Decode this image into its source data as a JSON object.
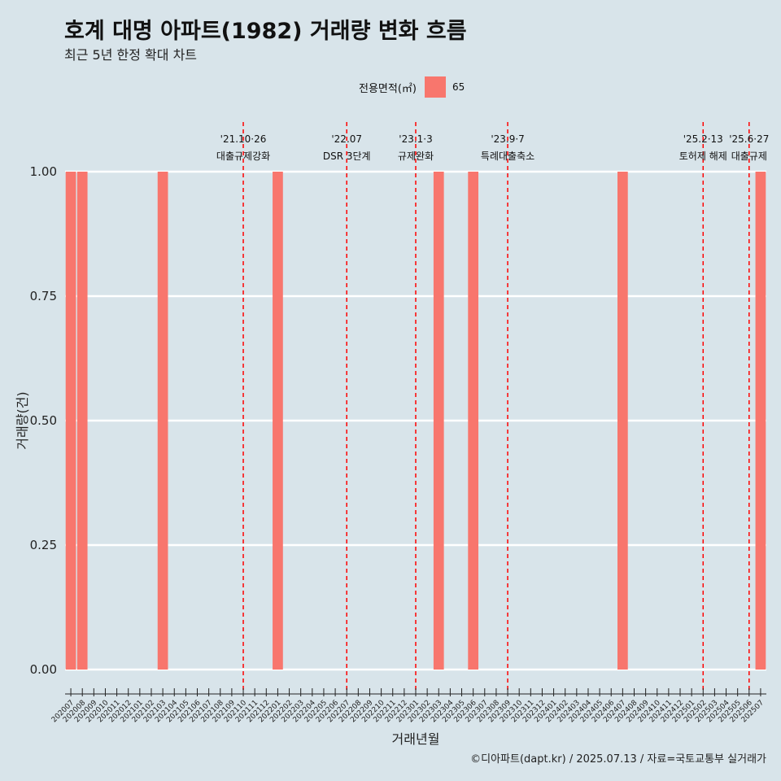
{
  "title": "호계 대명 아파트(1982) 거래량 변화 흐름",
  "subtitle": "최근 5년 한정 확대 차트",
  "caption": "©디아파트(dapt.kr) / 2025.07.13 / 자료=국토교통부 실거래가",
  "legend": {
    "title": "전용면적(㎡)",
    "color": "#f8766d",
    "items": [
      {
        "label": "65"
      }
    ]
  },
  "colors": {
    "background": "#d8e4ea",
    "bar": "#f8766d",
    "event_line": "#ff0000",
    "grid": "#ffffff"
  },
  "chart_data": {
    "type": "bar",
    "xlabel": "거래년월",
    "ylabel": "거래량(건)",
    "ylim": [
      0,
      1
    ],
    "yticks": [
      "0.00",
      "0.25",
      "0.50",
      "0.75",
      "1.00"
    ],
    "grid": true,
    "legend_position": "top",
    "categories": [
      "202007",
      "202008",
      "202009",
      "202010",
      "202011",
      "202012",
      "202101",
      "202102",
      "202103",
      "202104",
      "202105",
      "202106",
      "202107",
      "202108",
      "202109",
      "202110",
      "202111",
      "202112",
      "202201",
      "202202",
      "202203",
      "202204",
      "202205",
      "202206",
      "202207",
      "202208",
      "202209",
      "202210",
      "202211",
      "202212",
      "202301",
      "202302",
      "202303",
      "202304",
      "202305",
      "202306",
      "202307",
      "202308",
      "202309",
      "202310",
      "202311",
      "202312",
      "202401",
      "202402",
      "202403",
      "202404",
      "202405",
      "202406",
      "202407",
      "202408",
      "202409",
      "202410",
      "202411",
      "202412",
      "202501",
      "202502",
      "202503",
      "202504",
      "202505",
      "202506",
      "202507"
    ],
    "series": [
      {
        "name": "65",
        "values": [
          1,
          1,
          0,
          0,
          0,
          0,
          0,
          0,
          1,
          0,
          0,
          0,
          0,
          0,
          0,
          0,
          0,
          0,
          1,
          0,
          0,
          0,
          0,
          0,
          0,
          0,
          0,
          0,
          0,
          0,
          0,
          0,
          1,
          0,
          0,
          1,
          0,
          0,
          0,
          0,
          0,
          0,
          0,
          0,
          0,
          0,
          0,
          0,
          1,
          0,
          0,
          0,
          0,
          0,
          0,
          0,
          0,
          0,
          0,
          0,
          1
        ]
      }
    ],
    "annotations": [
      {
        "date": "202110",
        "line1": "'21.10·26",
        "line2": "대출규제강화"
      },
      {
        "date": "202207",
        "line1": "'22.07",
        "line2": "DSR 3단계"
      },
      {
        "date": "202301",
        "line1": "'23.1·3",
        "line2": "규제완화"
      },
      {
        "date": "202309",
        "line1": "'23.9·7",
        "line2": "특례대출축소"
      },
      {
        "date": "202502",
        "line1": "'25.2·13",
        "line2": "토허제 해제"
      },
      {
        "date": "202506",
        "line1": "'25.6·27",
        "line2": "대출규제"
      }
    ]
  }
}
